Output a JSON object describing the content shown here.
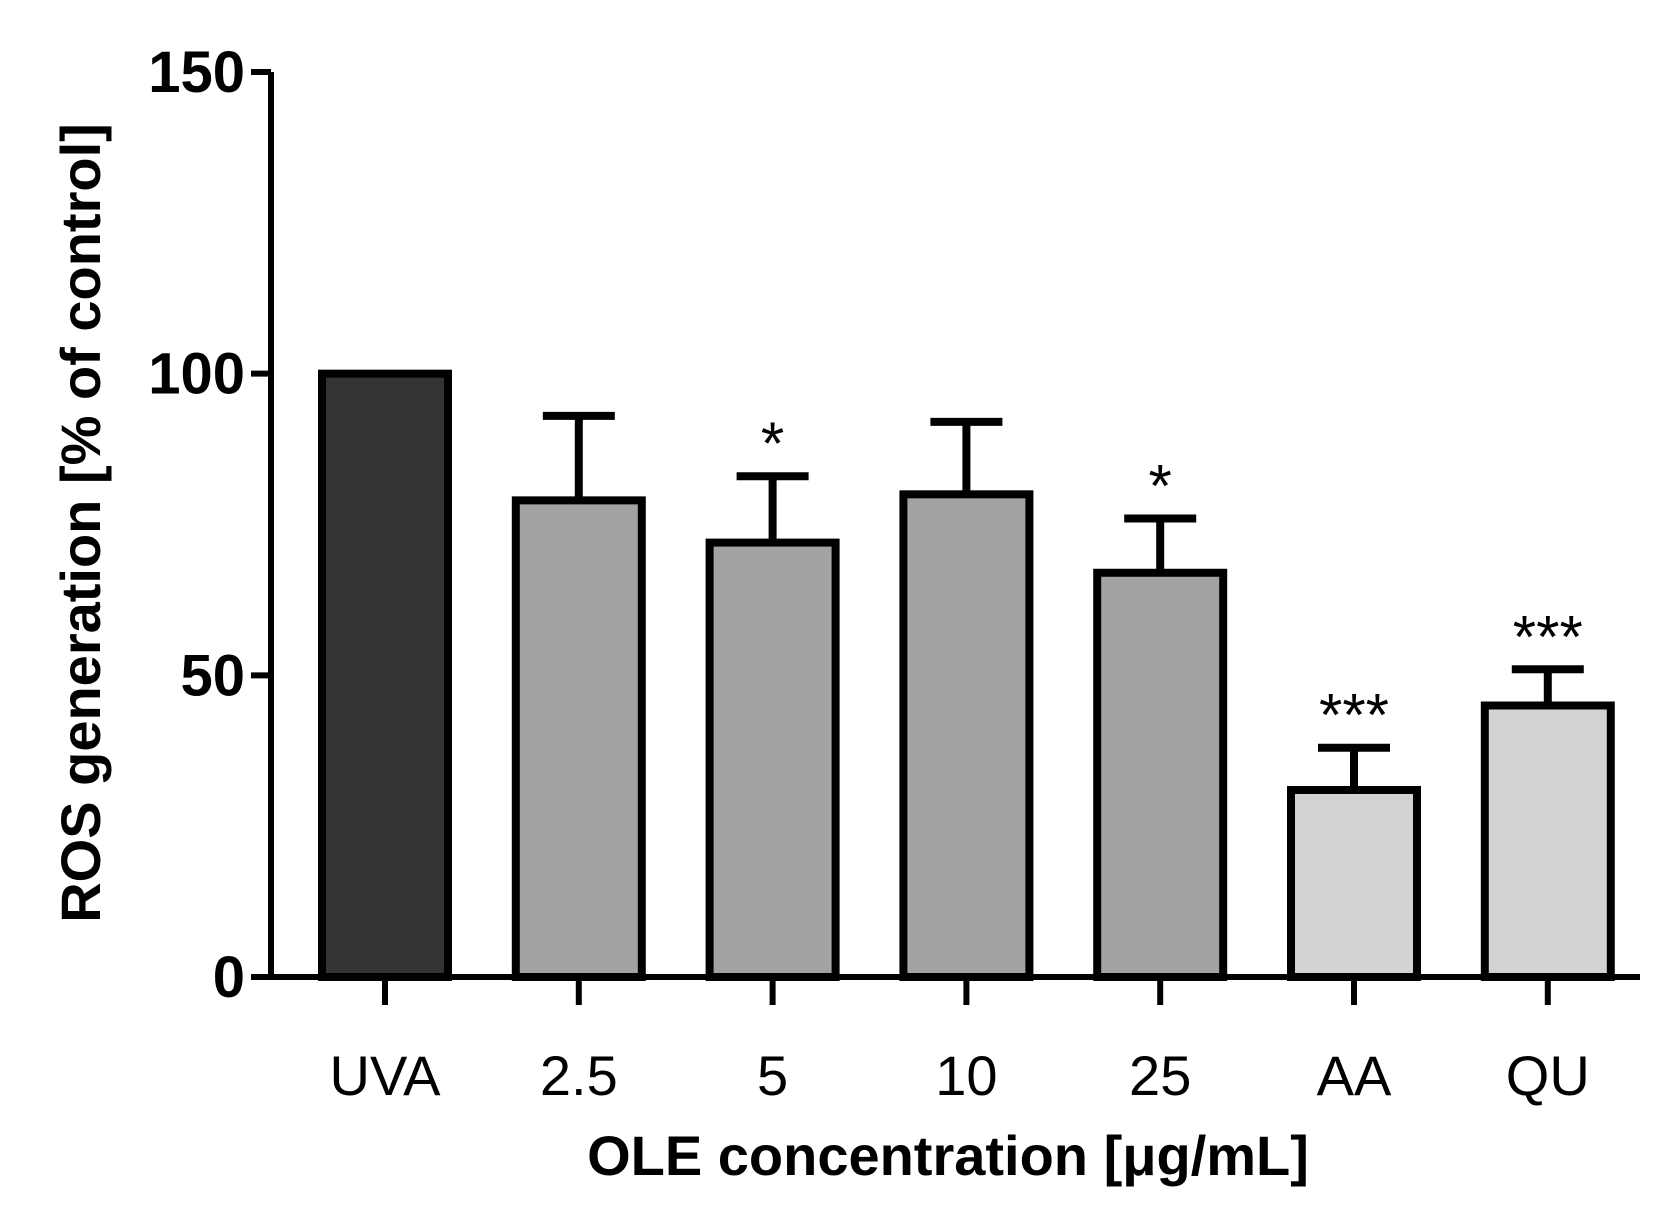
{
  "chart_data": {
    "type": "bar",
    "categories": [
      "UVA",
      "2.5",
      "5",
      "10",
      "25",
      "AA",
      "QU"
    ],
    "values": [
      100,
      79,
      72,
      80,
      67,
      31,
      45
    ],
    "error_upper": [
      0,
      14,
      11,
      12,
      9,
      7,
      6
    ],
    "significance": [
      "",
      "",
      "*",
      "",
      "*",
      "***",
      "***"
    ],
    "bar_colors": [
      "#333333",
      "#a3a3a5",
      "#a3a3a5",
      "#a3a3a5",
      "#a3a3a5",
      "#d2d2d2",
      "#d2d2d2"
    ],
    "xlabel": "OLE concentration [μg/mL]",
    "ylabel": "ROS generation [% of control]",
    "ylim": [
      0,
      150
    ],
    "yticks": [
      "0",
      "50",
      "100",
      "150"
    ],
    "grid": false,
    "legend": "none"
  }
}
